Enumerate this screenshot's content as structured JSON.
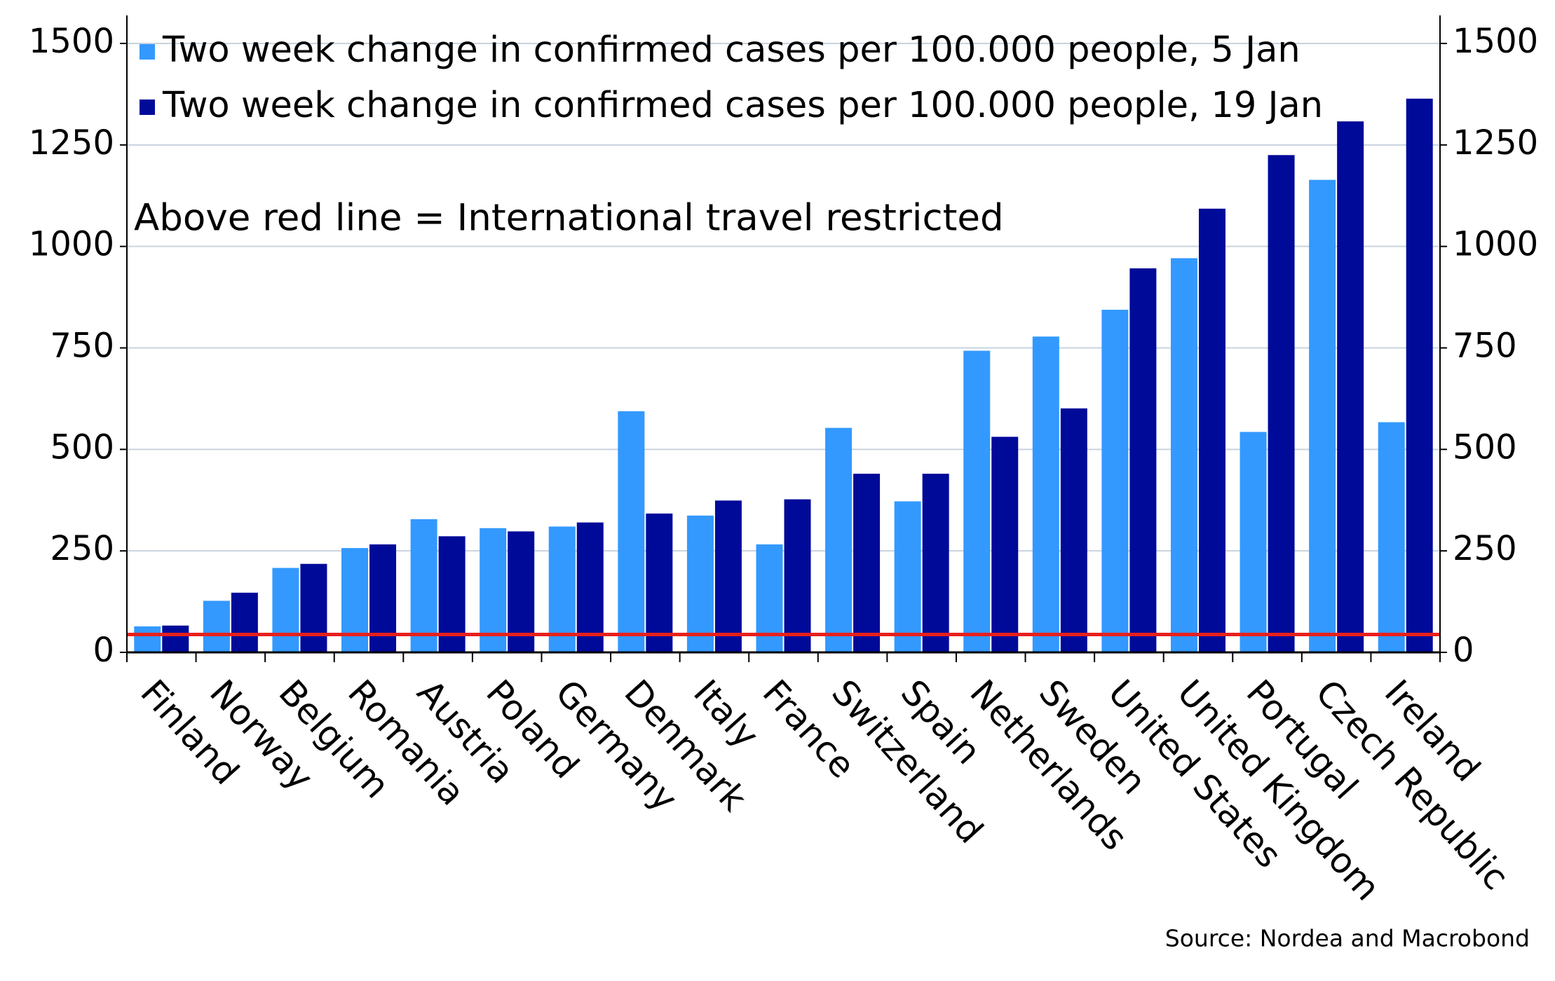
{
  "chart_data": {
    "type": "bar",
    "annotation": "Above red line = International travel restricted",
    "source": "Source: Nordea and Macrobond",
    "categories": [
      "Finland",
      "Norway",
      "Belgium",
      "Romania",
      "Austria",
      "Poland",
      "Germany",
      "Denmark",
      "Italy",
      "France",
      "Switzerland",
      "Spain",
      "Netherlands",
      "Sweden",
      "United States",
      "United Kingdom",
      "Portugal",
      "Czech Republic",
      "Ireland"
    ],
    "series": [
      {
        "name": "Two week change in confirmed cases per 100.000 people, 5 Jan",
        "color": "#3399ff",
        "values": [
          64,
          127,
          208,
          257,
          328,
          306,
          310,
          594,
          337,
          266,
          553,
          372,
          743,
          778,
          844,
          971,
          543,
          1164,
          567
        ]
      },
      {
        "name": "Two week change in confirmed cases per 100.000 people, 19 Jan",
        "color": "#000a99",
        "values": [
          66,
          147,
          218,
          266,
          286,
          298,
          320,
          342,
          374,
          377,
          440,
          440,
          531,
          601,
          946,
          1093,
          1225,
          1308,
          1364
        ]
      }
    ],
    "reference_line": {
      "value": 44,
      "color": "#e8201c"
    },
    "ylim": [
      0,
      1500
    ],
    "yticks": [
      0,
      250,
      500,
      750,
      1000,
      1250,
      1500
    ],
    "y2lim": [
      0,
      1500
    ],
    "y2ticks": [
      0,
      250,
      500,
      750,
      1000,
      1250,
      1500
    ],
    "grid": true
  }
}
